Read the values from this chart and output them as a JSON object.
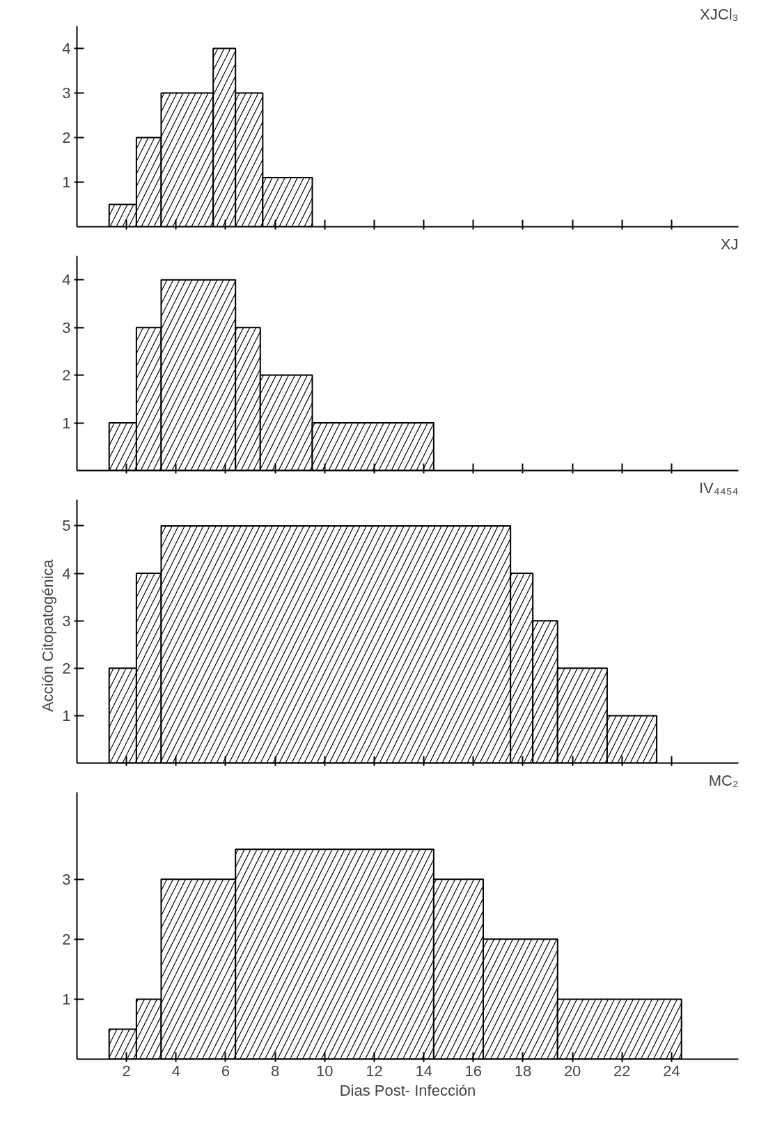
{
  "chart_data": [
    {
      "type": "histogram",
      "title": "XJCl₃",
      "bins": [
        1.3,
        2.4,
        3.4,
        5.5,
        6.4,
        7.5,
        9.5
      ],
      "values": [
        0.5,
        2,
        3,
        4,
        3,
        1.1
      ],
      "color": "#000000",
      "xlim": [
        0,
        26.7
      ],
      "ylim": [
        0,
        4.5
      ],
      "yticks": [
        1,
        2,
        3,
        4
      ],
      "xticks": [
        2,
        4,
        6,
        8,
        10,
        12,
        14,
        16,
        18,
        20,
        22,
        24
      ],
      "tick_labels": "y",
      "grid": false
    },
    {
      "type": "histogram",
      "title": "XJ",
      "bins": [
        1.3,
        2.4,
        3.4,
        6.4,
        7.4,
        9.5,
        14.4
      ],
      "values": [
        1,
        3,
        4,
        3,
        2,
        1
      ],
      "color": "#000000",
      "xlim": [
        0,
        26.7
      ],
      "ylim": [
        0,
        4.5
      ],
      "yticks": [
        1,
        2,
        3,
        4
      ],
      "xticks": [
        2,
        4,
        6,
        8,
        10,
        12,
        14,
        16,
        18,
        20,
        22,
        24
      ],
      "tick_labels": "y",
      "grid": false
    },
    {
      "type": "histogram",
      "title": "IV₄₄₅₄",
      "ylabel": "Acción   Citopatogénica",
      "bins": [
        1.3,
        2.4,
        3.4,
        17.5,
        18.4,
        19.4,
        21.4,
        23.4
      ],
      "values": [
        2,
        4,
        5,
        4,
        3,
        2,
        1
      ],
      "color": "#000000",
      "xlim": [
        0,
        26.7
      ],
      "ylim": [
        0,
        5.55
      ],
      "yticks": [
        1,
        2,
        3,
        4,
        5
      ],
      "xticks": [
        2,
        4,
        6,
        8,
        10,
        12,
        14,
        16,
        18,
        20,
        22,
        24
      ],
      "tick_labels": "y",
      "grid": false
    },
    {
      "type": "histogram",
      "title": "MC₂",
      "xlabel": "Dias Post- Infección",
      "bins": [
        1.3,
        2.4,
        3.4,
        6.4,
        14.4,
        16.4,
        19.4,
        24.4
      ],
      "values": [
        0.5,
        1,
        3,
        3.5,
        3,
        2,
        1
      ],
      "color": "#000000",
      "xlim": [
        0,
        26.7
      ],
      "ylim": [
        0,
        4.45
      ],
      "yticks": [
        1,
        2,
        3
      ],
      "xticks": [
        2,
        4,
        6,
        8,
        10,
        12,
        14,
        16,
        18,
        20,
        22,
        24
      ],
      "grid": false
    }
  ]
}
